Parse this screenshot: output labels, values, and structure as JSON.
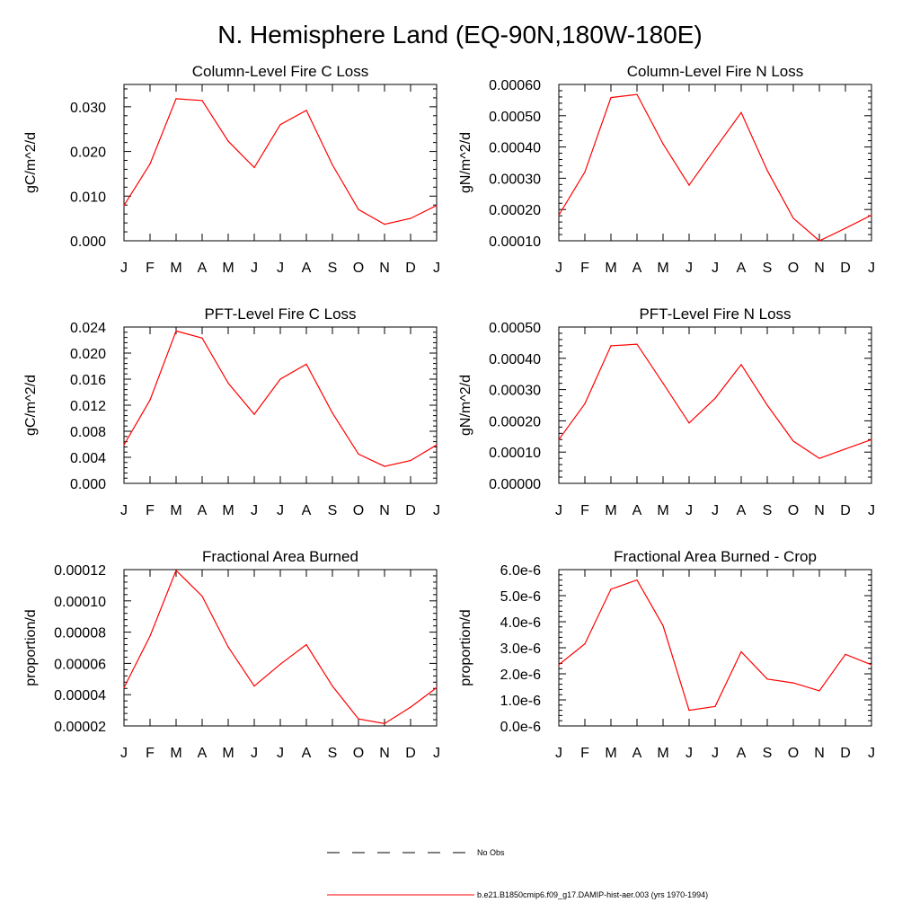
{
  "page_title": "N. Hemisphere Land (EQ-90N,180W-180E)",
  "line_color": "#ff0000",
  "legend": {
    "entries": [
      {
        "label": "No Obs",
        "style": "dashed",
        "color": "#000000"
      },
      {
        "label": "b.e21.B1850cmip6.f09_g17.DAMIP-hist-aer.003 (yrs 1970-1994)",
        "style": "solid",
        "color": "#ff0000"
      }
    ]
  },
  "chart_data": [
    {
      "type": "line",
      "title": "Column-Level Fire C Loss",
      "ylabel": "gC/m^2/d",
      "categories": [
        "J",
        "F",
        "M",
        "A",
        "M",
        "J",
        "J",
        "A",
        "S",
        "O",
        "N",
        "D",
        "J"
      ],
      "ylim": [
        0,
        0.035
      ],
      "yticks": [
        0.0,
        0.01,
        0.02,
        0.03
      ],
      "ytick_labels": [
        "0.000",
        "0.010",
        "0.020",
        "0.030"
      ],
      "series": [
        {
          "values": [
            0.0079,
            0.0172,
            0.0318,
            0.0314,
            0.0223,
            0.0164,
            0.026,
            0.0292,
            0.017,
            0.007,
            0.0037,
            0.005,
            0.0079
          ]
        }
      ]
    },
    {
      "type": "line",
      "title": "Column-Level Fire N Loss",
      "ylabel": "gN/m^2/d",
      "categories": [
        "J",
        "F",
        "M",
        "A",
        "M",
        "J",
        "J",
        "A",
        "S",
        "O",
        "N",
        "D",
        "J"
      ],
      "ylim": [
        0.0001,
        0.0006
      ],
      "yticks": [
        0.0001,
        0.0002,
        0.0003,
        0.0004,
        0.0005,
        0.0006
      ],
      "ytick_labels": [
        "0.00010",
        "0.00020",
        "0.00030",
        "0.00040",
        "0.00050",
        "0.00060"
      ],
      "series": [
        {
          "values": [
            0.000182,
            0.00032,
            0.000558,
            0.000568,
            0.00041,
            0.000278,
            0.000395,
            0.00051,
            0.000325,
            0.000172,
            0.0001,
            0.00014,
            0.000182
          ]
        }
      ]
    },
    {
      "type": "line",
      "title": "PFT-Level Fire C Loss",
      "ylabel": "gC/m^2/d",
      "categories": [
        "J",
        "F",
        "M",
        "A",
        "M",
        "J",
        "J",
        "A",
        "S",
        "O",
        "N",
        "D",
        "J"
      ],
      "ylim": [
        0,
        0.024
      ],
      "yticks": [
        0.0,
        0.004,
        0.008,
        0.012,
        0.016,
        0.02,
        0.024
      ],
      "ytick_labels": [
        "0.000",
        "0.004",
        "0.008",
        "0.012",
        "0.016",
        "0.020",
        "0.024"
      ],
      "series": [
        {
          "values": [
            0.0059,
            0.0128,
            0.0234,
            0.0223,
            0.0154,
            0.0106,
            0.016,
            0.0183,
            0.0108,
            0.0045,
            0.0026,
            0.0035,
            0.0059
          ]
        }
      ]
    },
    {
      "type": "line",
      "title": "PFT-Level Fire N Loss",
      "ylabel": "gN/m^2/d",
      "categories": [
        "J",
        "F",
        "M",
        "A",
        "M",
        "J",
        "J",
        "A",
        "S",
        "O",
        "N",
        "D",
        "J"
      ],
      "ylim": [
        0,
        0.0005
      ],
      "yticks": [
        0,
        0.0001,
        0.0002,
        0.0003,
        0.0004,
        0.0005
      ],
      "ytick_labels": [
        "0.00000",
        "0.00010",
        "0.00020",
        "0.00030",
        "0.00040",
        "0.00050"
      ],
      "series": [
        {
          "values": [
            0.00014,
            0.000255,
            0.00044,
            0.000445,
            0.00032,
            0.000193,
            0.000272,
            0.00038,
            0.00025,
            0.000135,
            8e-05,
            0.00011,
            0.00014
          ]
        }
      ]
    },
    {
      "type": "line",
      "title": "Fractional Area Burned",
      "ylabel": "proportion/d",
      "categories": [
        "J",
        "F",
        "M",
        "A",
        "M",
        "J",
        "J",
        "A",
        "S",
        "O",
        "N",
        "D",
        "J"
      ],
      "ylim": [
        2e-05,
        0.00012
      ],
      "yticks": [
        2e-05,
        4e-05,
        6e-05,
        8e-05,
        0.0001,
        0.00012
      ],
      "ytick_labels": [
        "0.00002",
        "0.00004",
        "0.00006",
        "0.00008",
        "0.00010",
        "0.00012"
      ],
      "series": [
        {
          "values": [
            4.45e-05,
            7.75e-05,
            0.0001195,
            0.000103,
            7.05e-05,
            4.55e-05,
            5.95e-05,
            7.2e-05,
            4.55e-05,
            2.45e-05,
            2.15e-05,
            3.2e-05,
            4.45e-05
          ]
        }
      ]
    },
    {
      "type": "line",
      "title": "Fractional Area Burned - Crop",
      "ylabel": "proportion/d",
      "categories": [
        "J",
        "F",
        "M",
        "A",
        "M",
        "J",
        "J",
        "A",
        "S",
        "O",
        "N",
        "D",
        "J"
      ],
      "ylim": [
        0,
        6e-06
      ],
      "yticks": [
        0,
        1e-06,
        2e-06,
        3e-06,
        4e-06,
        5e-06,
        6e-06
      ],
      "ytick_labels": [
        "0.0e-6",
        "1.0e-6",
        "2.0e-6",
        "3.0e-6",
        "4.0e-6",
        "5.0e-6",
        "6.0e-6"
      ],
      "series": [
        {
          "values": [
            2.35e-06,
            3.15e-06,
            5.25e-06,
            5.6e-06,
            3.85e-06,
            6e-07,
            7.5e-07,
            2.85e-06,
            1.8e-06,
            1.65e-06,
            1.35e-06,
            2.75e-06,
            2.35e-06
          ]
        }
      ]
    }
  ]
}
